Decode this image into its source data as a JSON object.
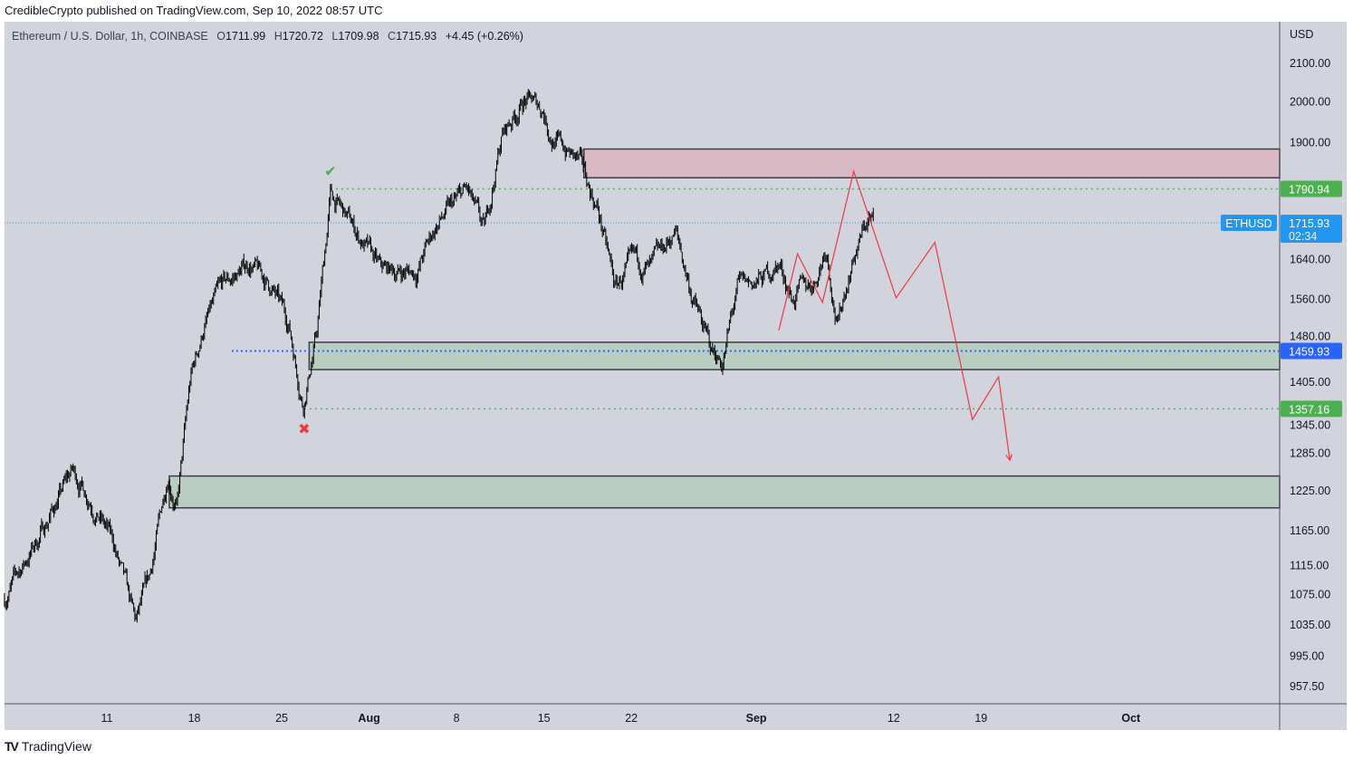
{
  "publisher_line": "CredibleCrypto published on TradingView.com, Sep 10, 2022 08:57 UTC",
  "legend": {
    "symbol": "Ethereum / U.S. Dollar, 1h, COINBASE",
    "open_prefix": "O",
    "open": "1711.99",
    "high_prefix": "H",
    "high": "1720.72",
    "low_prefix": "L",
    "low": "1709.98",
    "close_prefix": "C",
    "close": "1715.93",
    "change": "+4.45 (+0.26%)"
  },
  "footer": {
    "logo": "TV",
    "brand": "TradingView"
  },
  "colors": {
    "background": "#d1d4dc",
    "candles": "#000000",
    "supply_zone": "#d8b9c4",
    "demand_zone": "#b9cdc3",
    "level_green": "#4caf50",
    "level_blue": "#2962ff",
    "last_price": "#2196f3",
    "projection": "#f23645"
  },
  "chart_data": {
    "type": "candlestick",
    "title": "Ethereum / U.S. Dollar, 1h, COINBASE",
    "currency_label": "USD",
    "y_scale": "log",
    "x_unit_note": "days from Jul 11",
    "x_ticks": [
      {
        "label": "11",
        "day": 0,
        "bold": false
      },
      {
        "label": "18",
        "day": 7,
        "bold": false
      },
      {
        "label": "25",
        "day": 14,
        "bold": false
      },
      {
        "label": "Aug",
        "day": 21,
        "bold": true
      },
      {
        "label": "8",
        "day": 28,
        "bold": false
      },
      {
        "label": "15",
        "day": 35,
        "bold": false
      },
      {
        "label": "22",
        "day": 42,
        "bold": false
      },
      {
        "label": "Sep",
        "day": 52,
        "bold": true
      },
      {
        "label": "12",
        "day": 63,
        "bold": false
      },
      {
        "label": "19",
        "day": 70,
        "bold": false
      },
      {
        "label": "Oct",
        "day": 82,
        "bold": true
      }
    ],
    "y_ticks": [
      "2100.00",
      "2000.00",
      "1900.00",
      "1640.00",
      "1560.00",
      "1480.00",
      "1405.00",
      "1345.00",
      "1285.00",
      "1225.00",
      "1165.00",
      "1115.00",
      "1075.00",
      "1035.00",
      "995.00",
      "957.50"
    ],
    "price_path": [
      [
        -8.2,
        1069
      ],
      [
        -5.7,
        1146
      ],
      [
        -2.8,
        1255
      ],
      [
        -1.3,
        1213
      ],
      [
        0.5,
        1146
      ],
      [
        2.3,
        1033
      ],
      [
        3.4,
        1093
      ],
      [
        4.9,
        1255
      ],
      [
        5.6,
        1199
      ],
      [
        6.7,
        1407
      ],
      [
        7.8,
        1508
      ],
      [
        9.2,
        1579
      ],
      [
        11.4,
        1631
      ],
      [
        13.2,
        1579
      ],
      [
        14.6,
        1508
      ],
      [
        15.7,
        1368
      ],
      [
        16.8,
        1491
      ],
      [
        17.9,
        1776
      ],
      [
        19.7,
        1707
      ],
      [
        21.9,
        1614
      ],
      [
        24.8,
        1614
      ],
      [
        26.3,
        1707
      ],
      [
        28.8,
        1787
      ],
      [
        30.2,
        1689
      ],
      [
        31.6,
        1914
      ],
      [
        33.4,
        2005
      ],
      [
        34.9,
        1982
      ],
      [
        35.6,
        1914
      ],
      [
        37.8,
        1851
      ],
      [
        39.3,
        1747
      ],
      [
        40.7,
        1579
      ],
      [
        42.2,
        1631
      ],
      [
        43.6,
        1614
      ],
      [
        45.5,
        1698
      ],
      [
        46.9,
        1562
      ],
      [
        48.4,
        1458
      ],
      [
        49.3,
        1442
      ],
      [
        50.5,
        1579
      ],
      [
        52.4,
        1595
      ],
      [
        53.8,
        1631
      ],
      [
        54.9,
        1562
      ],
      [
        56.7,
        1595
      ],
      [
        57.6,
        1669
      ],
      [
        58.5,
        1508
      ],
      [
        59.6,
        1631
      ],
      [
        61.0,
        1727
      ],
      [
        61.4,
        1716
      ]
    ],
    "zones": [
      {
        "name": "supply",
        "from_day": 38.2,
        "top": 1883,
        "bottom": 1816
      },
      {
        "name": "demand-mid",
        "from_day": 16.2,
        "top": 1476,
        "bottom": 1426
      },
      {
        "name": "demand-low",
        "from_day": 5.0,
        "top": 1247,
        "bottom": 1198
      }
    ],
    "levels": [
      {
        "name": "resistance",
        "price": 1790.94,
        "label": "1790.94",
        "from_day": 17.9,
        "kind": "green"
      },
      {
        "name": "mid-level",
        "price": 1459.93,
        "label": "1459.93",
        "from_day": 10.0,
        "kind": "blue"
      },
      {
        "name": "support",
        "price": 1357.16,
        "label": "1357.16",
        "from_day": 15.8,
        "kind": "green"
      }
    ],
    "last_price": {
      "symbol": "ETHUSD",
      "price": 1715.93,
      "label": "1715.93",
      "countdown": "02:34"
    },
    "projection": [
      [
        53.8,
        1498
      ],
      [
        55.3,
        1650
      ],
      [
        57.3,
        1552
      ],
      [
        59.8,
        1831
      ],
      [
        63.2,
        1561
      ],
      [
        66.3,
        1674
      ],
      [
        69.3,
        1339
      ],
      [
        71.4,
        1413
      ],
      [
        72.3,
        1272
      ]
    ],
    "markers": [
      {
        "name": "check",
        "glyph": "✔",
        "day": 17.9,
        "price": 1820
      },
      {
        "name": "cross",
        "glyph": "✖",
        "day": 15.8,
        "price": 1315
      }
    ]
  }
}
